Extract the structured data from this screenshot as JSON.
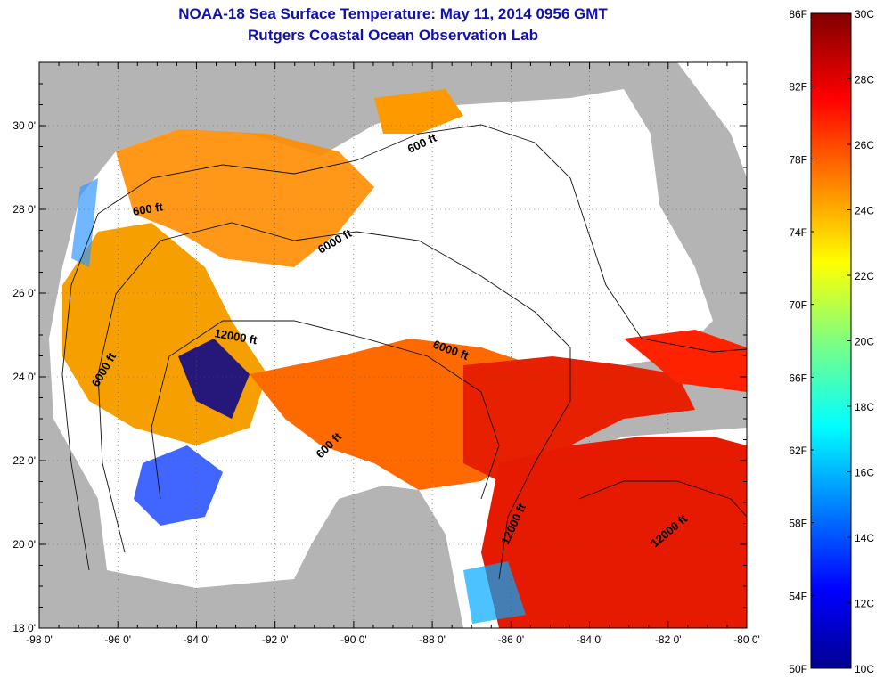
{
  "title": "NOAA-18 Sea Surface Temperature:  May 11, 2014 0956 GMT",
  "subtitle": "Rutgers Coastal Ocean Observation Lab",
  "map": {
    "lon_range": [
      -98,
      -80
    ],
    "lat_range": [
      18,
      31
    ],
    "lon_ticks": [
      "-98 0'",
      "-96 0'",
      "-94 0'",
      "-92 0'",
      "-90 0'",
      "-88 0'",
      "-86 0'",
      "-84 0'",
      "-82 0'",
      "-80 0'"
    ],
    "lat_ticks": [
      "18 0'",
      "20 0'",
      "22 0'",
      "24 0'",
      "26 0'",
      "28 0'",
      "30 0'"
    ],
    "contour_labels": [
      "600 ft",
      "600 ft",
      "6000 ft",
      "12000 ft",
      "6000 ft",
      "6000 ft",
      "600 ft",
      "12000 ft",
      "12000 ft"
    ],
    "land_color": "#b4b4b4",
    "cloud_color": "#ffffff"
  },
  "colorbar": {
    "fahrenheit_labels": [
      "86F",
      "82F",
      "78F",
      "74F",
      "70F",
      "66F",
      "62F",
      "58F",
      "54F",
      "50F"
    ],
    "celsius_labels": [
      "30C",
      "28C",
      "26C",
      "24C",
      "22C",
      "20C",
      "18C",
      "16C",
      "14C",
      "12C",
      "10C"
    ],
    "range_c": [
      10,
      30
    ],
    "colormap": "jet"
  }
}
